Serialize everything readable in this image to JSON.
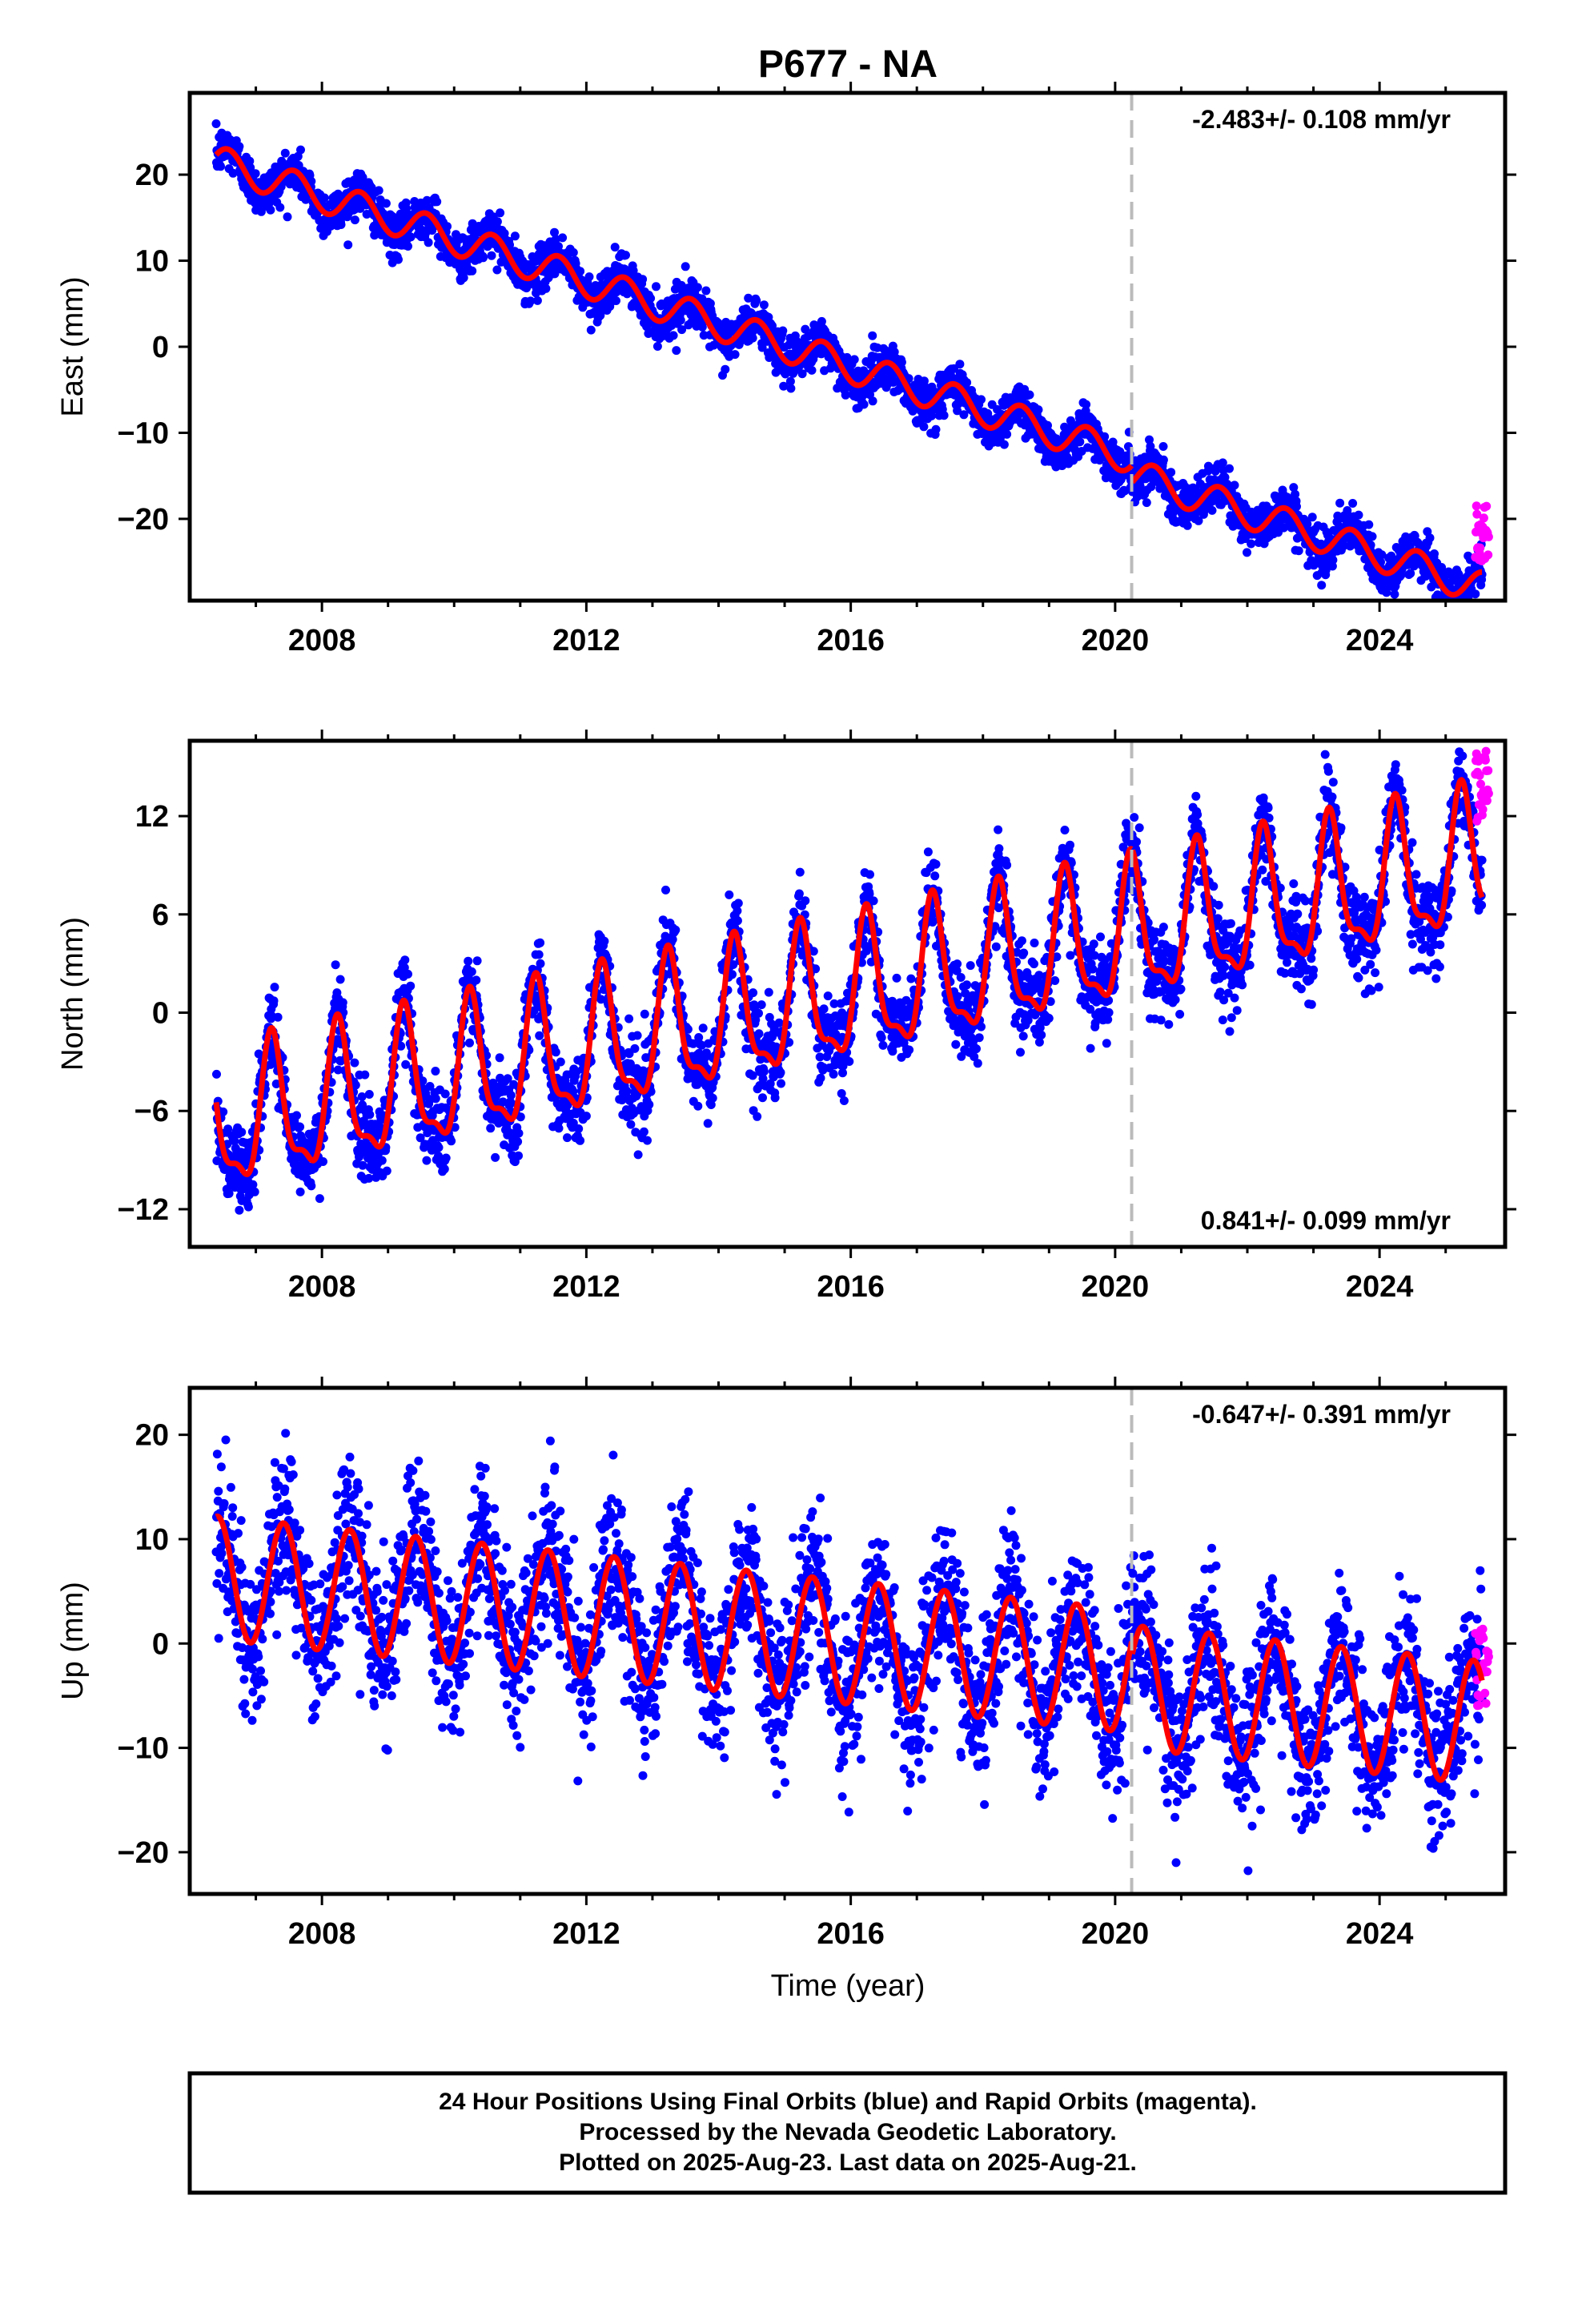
{
  "title": "P677 - NA",
  "xlabel": "Time (year)",
  "caption": [
    "24 Hour Positions Using Final Orbits (blue) and Rapid Orbits (magenta).",
    "Processed by the Nevada Geodetic Laboratory.",
    "Plotted on 2025-Aug-23. Last data on 2025-Aug-21."
  ],
  "colors": {
    "final": "#0000ff",
    "rapid": "#ff00ff",
    "model": "#ff0000",
    "break": "#bbbbbb"
  },
  "chart_data": [
    {
      "type": "scatter",
      "ylabel": "East (mm)",
      "rate": "-2.483+/- 0.108 mm/yr",
      "xlim": [
        2006.0,
        2025.9
      ],
      "ylim": [
        -29.5,
        29.5
      ],
      "xticks": [
        2008,
        2012,
        2016,
        2020,
        2024
      ],
      "yticks": [
        20,
        10,
        0,
        -10,
        -20
      ],
      "ytick_labels": [
        "20",
        "10",
        "0",
        "−10",
        "−20"
      ],
      "break_year": 2020.25,
      "model": {
        "t0": 2006.4,
        "start": 2006.4,
        "end": 2025.55,
        "offset": 21.5,
        "trend": -2.483,
        "annual_amp": 1.9,
        "annual_phase": 0.33,
        "step_at": 2020.25,
        "step": -2.0
      },
      "noise_sd": 1.3,
      "x": [
        2006.4,
        2008.0,
        2010.0,
        2012.0,
        2014.0,
        2016.0,
        2018.0,
        2020.0,
        2022.0,
        2024.0,
        2025.6
      ],
      "y": [
        21.5,
        20.0,
        15.0,
        10.5,
        5.5,
        0.5,
        -4.0,
        -9.0,
        -16.0,
        -21.0,
        -24.5
      ],
      "rapid": {
        "x": [
          2025.45,
          2025.65
        ],
        "y_range": [
          -25.0,
          -18.5
        ]
      }
    },
    {
      "type": "scatter",
      "ylabel": "North (mm)",
      "rate": "0.841+/- 0.099 mm/yr",
      "xlim": [
        2006.0,
        2025.9
      ],
      "ylim": [
        -14.3,
        16.6
      ],
      "xticks": [
        2008,
        2012,
        2016,
        2020,
        2024
      ],
      "yticks": [
        12,
        6,
        0,
        -6,
        -12
      ],
      "ytick_labels": [
        "12",
        "6",
        "0",
        "−6",
        "−12"
      ],
      "break_year": 2020.25,
      "model": {
        "t0": 2006.4,
        "start": 2006.4,
        "end": 2025.55,
        "offset": -7.0,
        "trend": 0.841,
        "annual_amp": 4.0,
        "annual_phase": 0.0,
        "semi_amp": 1.4,
        "semi_phase": 0.1,
        "step_at": 2020.25,
        "step": 0.0
      },
      "noise_sd": 1.3,
      "x": [
        2006.4,
        2008.0,
        2010.0,
        2012.0,
        2014.0,
        2016.0,
        2018.0,
        2020.0,
        2022.0,
        2024.0,
        2025.6
      ],
      "y": [
        -7.0,
        -7.5,
        -5.0,
        -3.5,
        -1.5,
        0.0,
        1.5,
        3.5,
        5.0,
        6.5,
        11.5
      ],
      "rapid": {
        "x": [
          2025.45,
          2025.65
        ],
        "y_range": [
          11.0,
          16.0
        ]
      }
    },
    {
      "type": "scatter",
      "ylabel": "Up (mm)",
      "rate": "-0.647+/- 0.391 mm/yr",
      "xlim": [
        2006.0,
        2025.9
      ],
      "ylim": [
        -24.0,
        24.5
      ],
      "xticks": [
        2008,
        2012,
        2016,
        2020,
        2024
      ],
      "yticks": [
        20,
        10,
        0,
        -10,
        -20
      ],
      "ytick_labels": [
        "20",
        "10",
        "0",
        "−10",
        "−20"
      ],
      "break_year": 2020.25,
      "model": {
        "t0": 2006.4,
        "start": 2006.4,
        "end": 2025.55,
        "offset": 6.3,
        "trend": -0.647,
        "annual_amp": 5.9,
        "annual_phase": 0.17,
        "step_at": 2020.25,
        "step": -1.5
      },
      "noise_sd": 3.6,
      "x": [
        2006.4,
        2008.0,
        2010.0,
        2012.0,
        2014.0,
        2016.0,
        2018.0,
        2020.0,
        2022.0,
        2024.0,
        2025.6
      ],
      "y": [
        1.5,
        5.0,
        3.5,
        3.0,
        2.0,
        1.0,
        -1.0,
        -3.0,
        -4.0,
        -5.0,
        -6.0
      ],
      "rapid": {
        "x": [
          2025.45,
          2025.65
        ],
        "y_range": [
          -6.0,
          1.5
        ]
      }
    }
  ]
}
